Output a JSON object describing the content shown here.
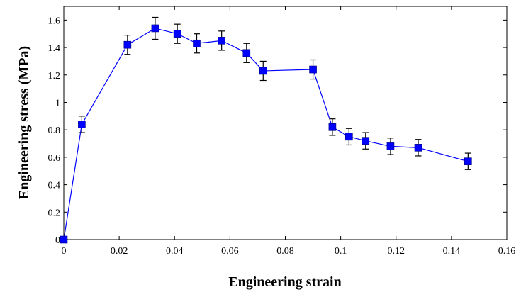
{
  "chart_data": {
    "type": "scatter",
    "title": "",
    "xlabel": "Engineering strain",
    "ylabel": "Engineering stress (MPa)",
    "xlim": [
      0,
      0.16
    ],
    "ylim": [
      0,
      1.7
    ],
    "grid": false,
    "x_ticks": [
      0,
      0.02,
      0.04,
      0.06,
      0.08,
      0.1,
      0.12,
      0.14,
      0.16
    ],
    "x_tick_labels": [
      "0",
      "0.02",
      "0.04",
      "0.06",
      "0.08",
      "0.1",
      "0.12",
      "0.14",
      "0.16"
    ],
    "y_ticks": [
      0,
      0.2,
      0.4,
      0.6,
      0.8,
      1.0,
      1.2,
      1.4,
      1.6
    ],
    "y_tick_labels": [
      "0",
      "0.2",
      "0.4",
      "0.6",
      "0.8",
      "1",
      "1.2",
      "1.4",
      "1.6"
    ],
    "series": [
      {
        "color": "#0000ff",
        "marker": "square",
        "line": true,
        "x": [
          0,
          0.0065,
          0.023,
          0.033,
          0.041,
          0.048,
          0.057,
          0.066,
          0.072,
          0.09,
          0.097,
          0.103,
          0.109,
          0.118,
          0.128,
          0.146
        ],
        "y": [
          0.0,
          0.84,
          1.42,
          1.54,
          1.5,
          1.43,
          1.45,
          1.36,
          1.23,
          1.24,
          0.82,
          0.75,
          0.72,
          0.68,
          0.67,
          0.57
        ],
        "error": [
          0.0,
          0.06,
          0.07,
          0.08,
          0.07,
          0.07,
          0.07,
          0.07,
          0.07,
          0.07,
          0.06,
          0.06,
          0.06,
          0.06,
          0.06,
          0.06
        ]
      }
    ]
  }
}
